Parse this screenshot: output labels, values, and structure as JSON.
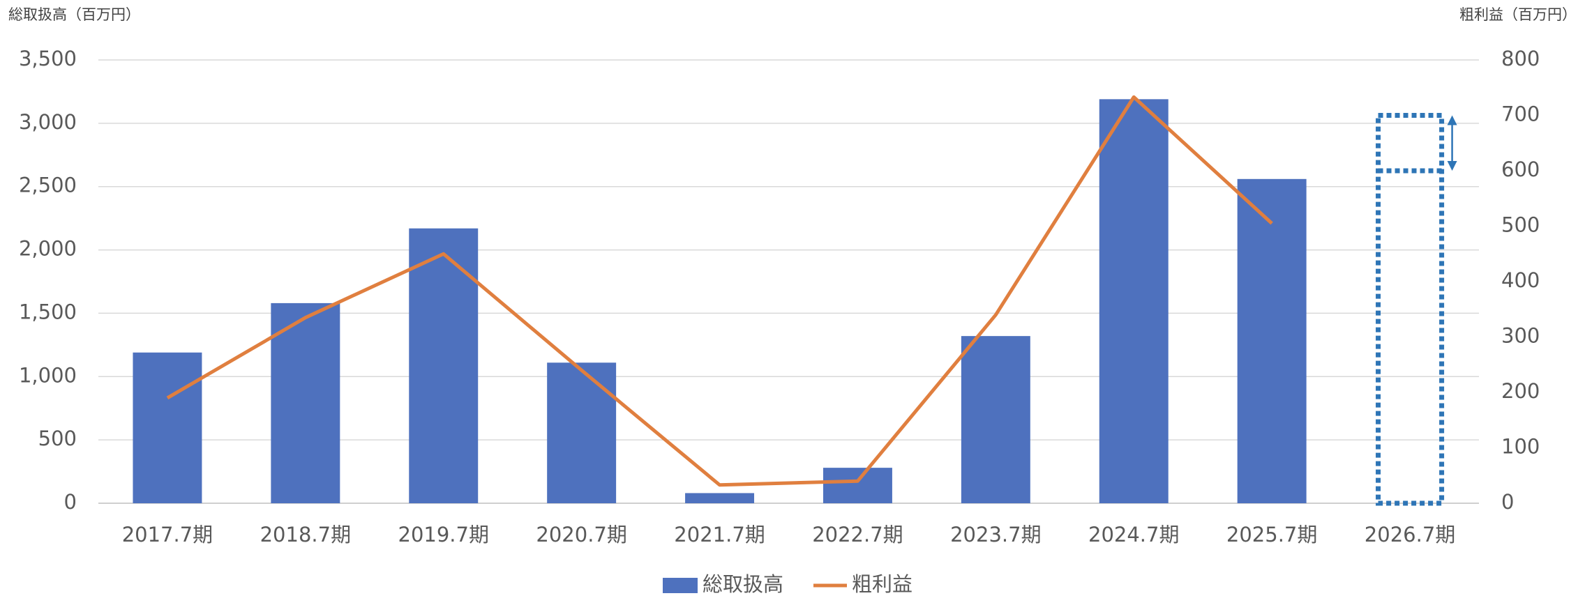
{
  "chart_data": {
    "type": "bar_line",
    "y_axis_label": "総取扱高（百万円）",
    "y2_axis_label": "粗利益（百万円）",
    "categories": [
      "2017.7期",
      "2018.7期",
      "2019.7期",
      "2020.7期",
      "2021.7期",
      "2022.7期",
      "2023.7期",
      "2024.7期",
      "2025.7期",
      "2026.7期"
    ],
    "series": [
      {
        "name": "総取扱高",
        "type": "bar",
        "color": "#4e71be",
        "values": [
          1190,
          1580,
          2170,
          1110,
          80,
          280,
          1320,
          3190,
          2560,
          null
        ]
      },
      {
        "name": "粗利益",
        "type": "line",
        "axis": "y2",
        "color": "#e07f3f",
        "values": [
          190,
          335,
          450,
          240,
          33,
          40,
          340,
          733,
          505,
          null
        ]
      }
    ],
    "forecast": {
      "low": 600,
      "high": 700,
      "axis": "y2",
      "color": "#2e75b6"
    },
    "ylim": [
      0,
      3500
    ],
    "yticks": [
      0,
      500,
      {
        "value": 1000,
        "label": "1,000"
      },
      {
        "value": 1500,
        "label": "1,500"
      },
      {
        "value": 2000,
        "label": "2,000"
      },
      {
        "value": 2500,
        "label": "2,500"
      },
      {
        "value": 3000,
        "label": "3,000"
      },
      {
        "value": 3500,
        "label": "3,500"
      }
    ],
    "y2lim": [
      0,
      800
    ],
    "y2ticks": [
      0,
      100,
      200,
      300,
      400,
      500,
      600,
      700,
      800
    ],
    "grid": true,
    "legend": "bottom"
  }
}
